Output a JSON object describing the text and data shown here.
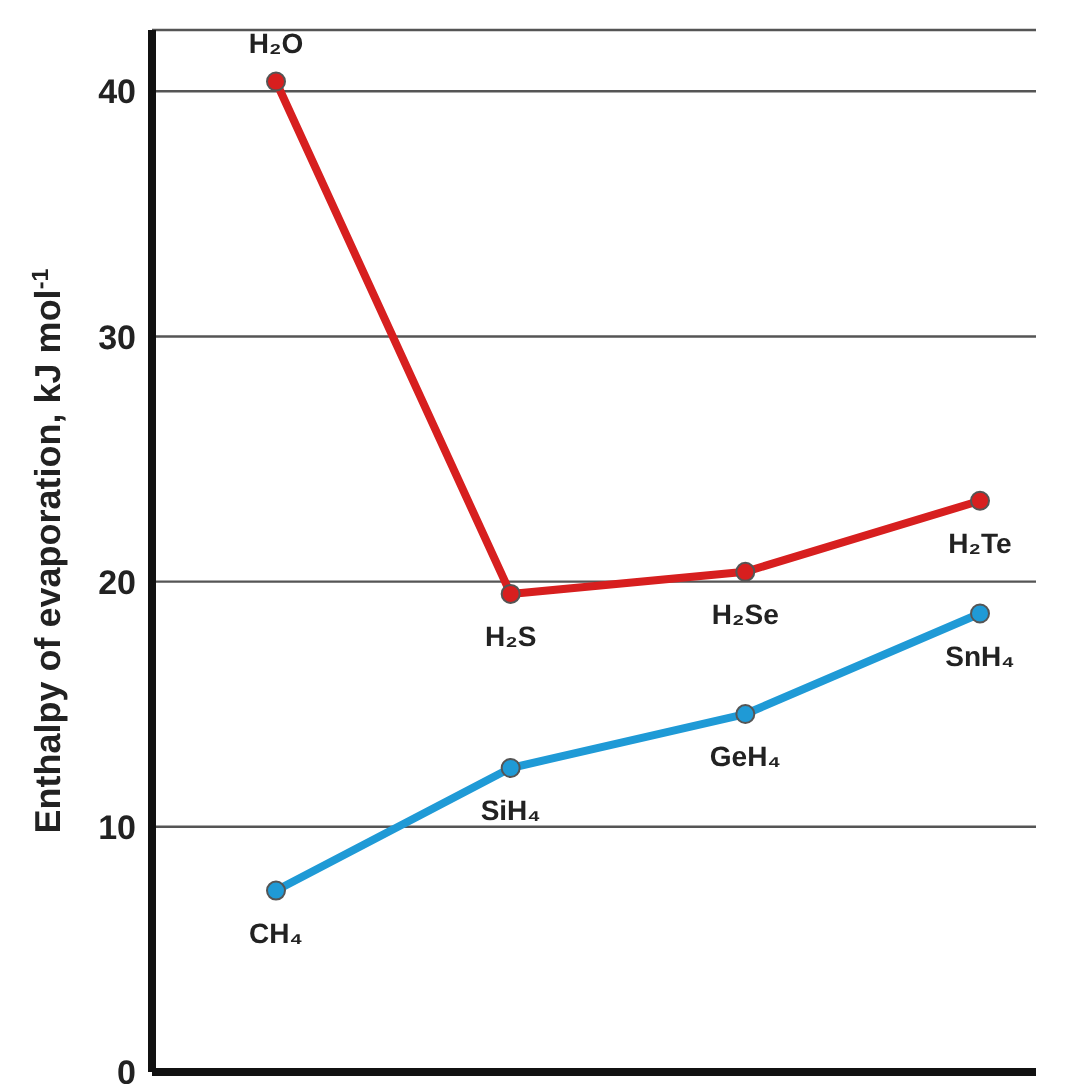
{
  "chart_data": {
    "type": "line",
    "ylabel": "Enthalpy of evaporation, kJ mol$^{-1}$",
    "categories": [
      null,
      null,
      null,
      null
    ],
    "series": [
      {
        "color": "#d71f1f",
        "values": [
          40.4,
          19.5,
          20.4,
          23.3
        ],
        "value_labels": [
          "H₂O",
          "H₂S",
          "H₂Se",
          "H₂Te"
        ]
      },
      {
        "color": "#1f9ad6",
        "values": [
          7.4,
          12.4,
          14.6,
          18.7
        ],
        "value_labels": [
          "CH₄",
          "SiH₄",
          "GeH₄",
          "SnH₄"
        ]
      }
    ],
    "ylim": [
      0,
      42.5
    ],
    "yticks": [
      0,
      10,
      20,
      30,
      40
    ],
    "grid": "y",
    "marker": "circle",
    "line_style": "solid"
  }
}
